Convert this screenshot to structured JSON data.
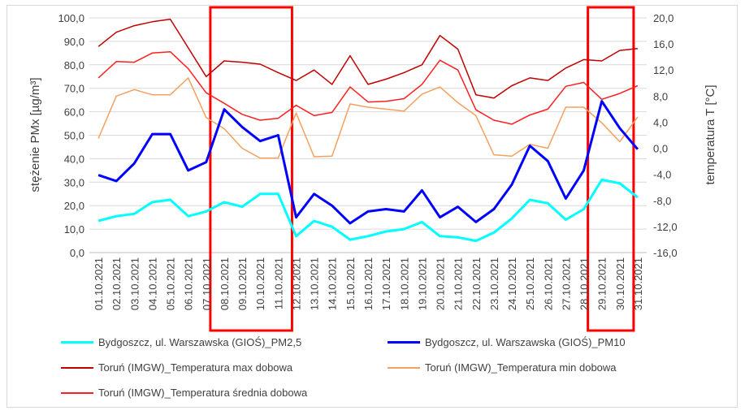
{
  "chart_data": {
    "type": "line",
    "categories": [
      "01.10.2021",
      "02.10.2021",
      "03.10.2021",
      "04.10.2021",
      "05.10.2021",
      "06.10.2021",
      "07.10.2021",
      "08.10.2021",
      "09.10.2021",
      "10.10.2021",
      "11.10.2021",
      "12.10.2021",
      "13.10.2021",
      "14.10.2021",
      "15.10.2021",
      "16.10.2021",
      "17.10.2021",
      "18.10.2021",
      "19.10.2021",
      "20.10.2021",
      "21.10.2021",
      "22.10.2021",
      "23.10.2021",
      "24.10.2021",
      "25.10.2021",
      "26.10.2021",
      "27.10.2021",
      "28.10.2021",
      "29.10.2021",
      "30.10.2021",
      "31.10.2021"
    ],
    "ylabel": "stężenie PMx [µg/m³]",
    "y2label": "temperatura T [°C]",
    "ylim": [
      0,
      100
    ],
    "y2lim": [
      -16,
      20
    ],
    "yticks": [
      "0,0",
      "10,0",
      "20,0",
      "30,0",
      "40,0",
      "50,0",
      "60,0",
      "70,0",
      "80,0",
      "90,0",
      "100,0"
    ],
    "y2ticks": [
      "-16,0",
      "-12,0",
      "-8,0",
      "-4,0",
      "0,0",
      "4,0",
      "8,0",
      "12,0",
      "16,0",
      "20,0"
    ],
    "highlight_ranges": [
      [
        "08.10.2021",
        "11.10.2021"
      ],
      [
        "29.10.2021",
        "30.10.2021"
      ]
    ],
    "series": [
      {
        "name": "Bydgoszcz, ul. Warszawska (GIOŚ)_PM2,5",
        "axis": "left",
        "color": "#00ffff",
        "width": 3,
        "values": [
          13.5,
          15.5,
          16.5,
          21.5,
          22.5,
          15.5,
          17.5,
          21.5,
          19.5,
          25,
          25,
          7,
          13.5,
          11,
          5.5,
          7,
          9,
          10,
          13,
          7,
          6.5,
          5,
          8.5,
          14.5,
          22.5,
          21,
          14,
          18.5,
          31,
          29.5,
          23.5
        ]
      },
      {
        "name": "Bydgoszcz, ul. Warszawska (GIOŚ)_PM10",
        "axis": "left",
        "color": "#0000ff",
        "width": 3,
        "values": [
          33,
          30.5,
          38,
          50.5,
          50.5,
          35,
          38.5,
          61,
          53.5,
          47.5,
          50,
          15,
          25,
          20,
          12.5,
          17.5,
          18.5,
          17.5,
          26.5,
          15,
          19.5,
          13,
          18.5,
          29,
          45.5,
          39,
          23,
          35,
          64.5,
          53,
          44
        ]
      },
      {
        "name": "Toruń (IMGW)_Temperatura max dobowa",
        "axis": "right",
        "color": "#c00000",
        "width": 1.5,
        "values": [
          15.6,
          17.8,
          18.8,
          19.4,
          19.8,
          15.4,
          11,
          13.4,
          13.2,
          12.9,
          11.6,
          10.4,
          12,
          9.8,
          14.2,
          9.8,
          10.6,
          11.6,
          12.8,
          17.3,
          15.2,
          8.2,
          7.7,
          9.6,
          10.8,
          10.4,
          12.3,
          13.6,
          13.4,
          15,
          15.3
        ]
      },
      {
        "name": "Toruń (IMGW)_Temperatura min dobowa",
        "axis": "right",
        "color": "#f4a05f",
        "width": 1.5,
        "values": [
          1.5,
          8,
          9,
          8.2,
          8.2,
          10.8,
          4.7,
          3,
          0,
          -1.5,
          -1.5,
          5.4,
          -1.3,
          -1.2,
          6.8,
          6.3,
          6,
          5.7,
          8.3,
          9.4,
          7,
          5,
          -1,
          -1.2,
          0.6,
          0,
          6.3,
          6.3,
          3.9,
          1,
          4.8
        ]
      },
      {
        "name": "Toruń (IMGW)_Temperatura średnia dobowa",
        "axis": "right",
        "color": "#ff1f1f",
        "width": 1.5,
        "values": [
          10.8,
          13.3,
          13.2,
          14.6,
          14.8,
          12.2,
          8.5,
          6.9,
          5.2,
          4.3,
          4.6,
          6.6,
          5,
          5.5,
          9.4,
          7.1,
          7.2,
          7.6,
          9.8,
          13.5,
          12,
          5.9,
          4.3,
          3.7,
          5.1,
          6,
          9.5,
          10.1,
          7.5,
          8.4,
          9.6
        ]
      }
    ]
  }
}
